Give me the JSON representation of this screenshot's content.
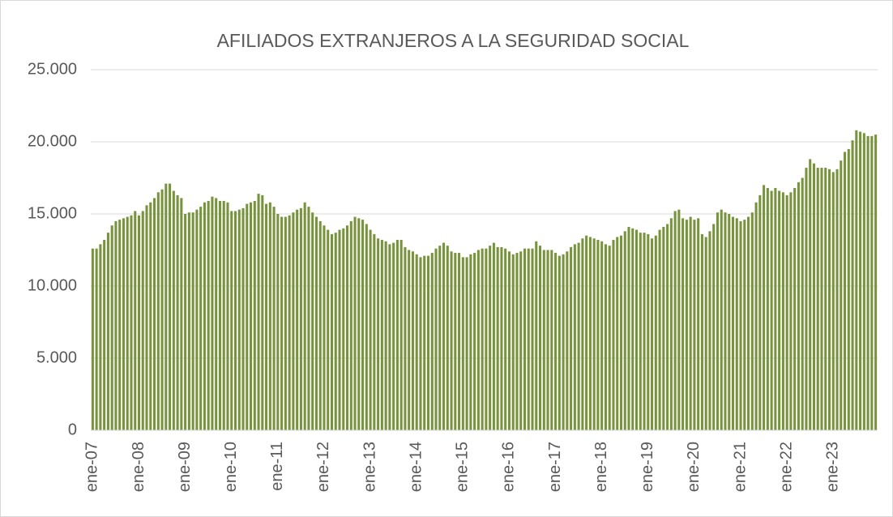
{
  "chart_data": {
    "type": "bar",
    "title": "AFILIADOS EXTRANJEROS A LA SEGURIDAD SOCIAL",
    "categories": [
      "ene-07",
      null,
      null,
      null,
      null,
      null,
      null,
      null,
      null,
      null,
      null,
      null,
      "ene-08",
      null,
      null,
      null,
      null,
      null,
      null,
      null,
      null,
      null,
      null,
      null,
      "ene-09",
      null,
      null,
      null,
      null,
      null,
      null,
      null,
      null,
      null,
      null,
      null,
      "ene-10",
      null,
      null,
      null,
      null,
      null,
      null,
      null,
      null,
      null,
      null,
      null,
      "ene-11",
      null,
      null,
      null,
      null,
      null,
      null,
      null,
      null,
      null,
      null,
      null,
      "ene-12",
      null,
      null,
      null,
      null,
      null,
      null,
      null,
      null,
      null,
      null,
      null,
      "ene-13",
      null,
      null,
      null,
      null,
      null,
      null,
      null,
      null,
      null,
      null,
      null,
      "ene-14",
      null,
      null,
      null,
      null,
      null,
      null,
      null,
      null,
      null,
      null,
      null,
      "ene-15",
      null,
      null,
      null,
      null,
      null,
      null,
      null,
      null,
      null,
      null,
      null,
      "ene-16",
      null,
      null,
      null,
      null,
      null,
      null,
      null,
      null,
      null,
      null,
      null,
      "ene-17",
      null,
      null,
      null,
      null,
      null,
      null,
      null,
      null,
      null,
      null,
      null,
      "ene-18",
      null,
      null,
      null,
      null,
      null,
      null,
      null,
      null,
      null,
      null,
      null,
      "ene-19",
      null,
      null,
      null,
      null,
      null,
      null,
      null,
      null,
      null,
      null,
      null,
      "ene-20",
      null,
      null,
      null,
      null,
      null,
      null,
      null,
      null,
      null,
      null,
      null,
      "ene-21",
      null,
      null,
      null,
      null,
      null,
      null,
      null,
      null,
      null,
      null,
      null,
      "ene-22",
      null,
      null,
      null,
      null,
      null,
      null,
      null,
      null,
      null,
      null,
      null,
      "ene-23",
      null,
      null,
      null,
      null,
      null,
      null,
      null,
      null,
      null,
      null,
      null
    ],
    "values": [
      12600,
      12600,
      12900,
      13200,
      13700,
      14200,
      14500,
      14600,
      14700,
      14800,
      14900,
      15200,
      14900,
      15200,
      15600,
      15800,
      16100,
      16500,
      16700,
      17100,
      17100,
      16600,
      16300,
      16100,
      15000,
      15100,
      15100,
      15300,
      15500,
      15800,
      15900,
      16200,
      16100,
      15900,
      15900,
      15800,
      15200,
      15200,
      15300,
      15400,
      15700,
      15800,
      15900,
      16400,
      16300,
      15700,
      15800,
      15500,
      15000,
      14800,
      14800,
      14900,
      15100,
      15300,
      15400,
      15800,
      15500,
      15100,
      14800,
      14500,
      14200,
      13900,
      13600,
      13700,
      13900,
      14000,
      14200,
      14500,
      14800,
      14700,
      14600,
      14300,
      13900,
      13600,
      13300,
      13200,
      13100,
      12900,
      13000,
      13200,
      13200,
      12700,
      12500,
      12400,
      12200,
      12000,
      12100,
      12100,
      12300,
      12600,
      12800,
      13000,
      12800,
      12400,
      12300,
      12300,
      12000,
      12000,
      12200,
      12300,
      12500,
      12600,
      12600,
      12800,
      13000,
      12700,
      12700,
      12600,
      12400,
      12200,
      12300,
      12400,
      12600,
      12600,
      12600,
      13100,
      12800,
      12500,
      12500,
      12500,
      12300,
      12100,
      12200,
      12400,
      12700,
      12900,
      13000,
      13300,
      13500,
      13400,
      13300,
      13200,
      13100,
      12900,
      12800,
      13200,
      13400,
      13500,
      13800,
      14100,
      14000,
      13900,
      13700,
      13700,
      13600,
      13300,
      13500,
      13900,
      14100,
      14300,
      14700,
      15200,
      15300,
      14700,
      14600,
      14800,
      14600,
      14700,
      13600,
      13400,
      13800,
      14300,
      15100,
      15300,
      15100,
      15000,
      14800,
      14700,
      14500,
      14600,
      14800,
      15100,
      15800,
      16300,
      17000,
      16800,
      16600,
      16800,
      16600,
      16500,
      16300,
      16500,
      16800,
      17200,
      17500,
      18200,
      18800,
      18500,
      18200,
      18200,
      18200,
      18100,
      17900,
      18100,
      18700,
      19300,
      19500,
      20100,
      20800,
      20700,
      20600,
      20400,
      20400,
      20500
    ],
    "color": "#77933c",
    "ylim": [
      0,
      25000
    ],
    "yticks": [
      0,
      {
        "value": 5000,
        "label": "5.000"
      },
      {
        "value": 10000,
        "label": "10.000"
      },
      {
        "value": 15000,
        "label": "15.000"
      },
      {
        "value": 20000,
        "label": "20.000"
      },
      {
        "value": 25000,
        "label": "25.000"
      }
    ],
    "grid": true
  }
}
